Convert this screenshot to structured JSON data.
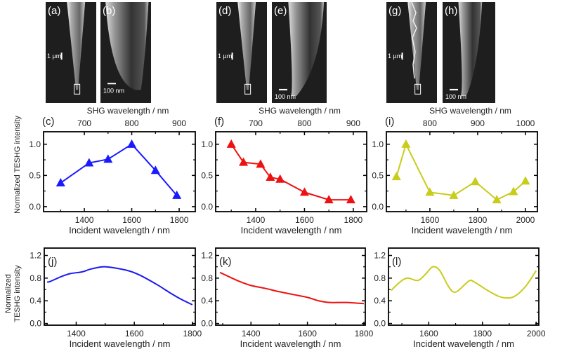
{
  "sem_panels": [
    {
      "label": "(a)",
      "scale_label": "1 µm",
      "kind": "overview-smooth"
    },
    {
      "label": "(b)",
      "scale_label": "100 nm",
      "kind": "apex-round"
    },
    {
      "label": "(d)",
      "scale_label": "1 µm",
      "kind": "overview-smooth"
    },
    {
      "label": "(e)",
      "scale_label": "100 nm",
      "kind": "apex-parabolic"
    },
    {
      "label": "(g)",
      "scale_label": "1 µm",
      "kind": "overview-rough"
    },
    {
      "label": "(h)",
      "scale_label": "100 nm",
      "kind": "apex-sharp"
    }
  ],
  "chart_data": [
    {
      "panel": "(c)",
      "type": "line",
      "markers": "triangle",
      "color": "#1a1aff",
      "xlabel": "Incident wavelength / nm",
      "x2label": "SHG wavelength / nm",
      "ylabel": "Normalized TESHG intensity",
      "xlim": [
        1228,
        1868
      ],
      "ylim": [
        -0.08,
        1.2
      ],
      "xticks": [
        1400,
        1600,
        1800
      ],
      "x2ticks": [
        700,
        800,
        900
      ],
      "yticks": [
        "0.0",
        "0.5",
        "1.0"
      ],
      "x": [
        1300,
        1420,
        1500,
        1600,
        1700,
        1790
      ],
      "y": [
        0.38,
        0.7,
        0.76,
        1.0,
        0.58,
        0.18
      ]
    },
    {
      "panel": "(f)",
      "type": "line",
      "markers": "triangle",
      "color": "#ee1111",
      "xlabel": "Incident wavelength / nm",
      "x2label": "SHG wavelength / nm",
      "xlim": [
        1236,
        1855
      ],
      "ylim": [
        -0.08,
        1.2
      ],
      "xticks": [
        1400,
        1600,
        1800
      ],
      "x2ticks": [
        700,
        800,
        900
      ],
      "yticks": [
        "0.0",
        "0.5",
        "1.0"
      ],
      "x": [
        1300,
        1350,
        1420,
        1460,
        1500,
        1600,
        1700,
        1790
      ],
      "y": [
        1.0,
        0.71,
        0.68,
        0.47,
        0.44,
        0.23,
        0.11,
        0.11
      ]
    },
    {
      "panel": "(i)",
      "type": "line",
      "markers": "triangle",
      "color": "#c8cc1a",
      "xlabel": "Incident wavelength / nm",
      "x2label": "SHG wavelength / nm",
      "xlim": [
        1418,
        2050
      ],
      "ylim": [
        -0.08,
        1.2
      ],
      "xticks": [
        1600,
        1800,
        2000
      ],
      "x2ticks": [
        800,
        900,
        1000
      ],
      "yticks": [
        "0.0",
        "0.5",
        "1.0"
      ],
      "x": [
        1460,
        1500,
        1600,
        1700,
        1790,
        1880,
        1950,
        2000
      ],
      "y": [
        0.48,
        1.0,
        0.23,
        0.18,
        0.4,
        0.11,
        0.24,
        0.41
      ]
    },
    {
      "panel": "(j)",
      "type": "line",
      "color": "#1a1aee",
      "xlabel": "Incident wavelength / nm",
      "ylabel": [
        "Normalized",
        "TESHG intensity"
      ],
      "xlim": [
        1290,
        1810
      ],
      "ylim": [
        -0.03,
        1.33
      ],
      "xticks": [
        1400,
        1600,
        1800
      ],
      "yticks": [
        "0.0",
        "0.4",
        "0.8",
        "1.2"
      ],
      "x": [
        1300,
        1310,
        1350,
        1380,
        1420,
        1450,
        1490,
        1520,
        1580,
        1620,
        1680,
        1720,
        1760,
        1800
      ],
      "y": [
        0.73,
        0.74,
        0.83,
        0.88,
        0.91,
        0.96,
        1.0,
        0.99,
        0.93,
        0.85,
        0.68,
        0.55,
        0.43,
        0.33
      ]
    },
    {
      "panel": "(k)",
      "type": "line",
      "color": "#ee1111",
      "xlabel": "Incident wavelength / nm",
      "xlim": [
        1275,
        1805
      ],
      "ylim": [
        -0.03,
        1.33
      ],
      "xticks": [
        1400,
        1600,
        1800
      ],
      "yticks": [
        "0.0",
        "0.4",
        "0.8",
        "1.2"
      ],
      "x": [
        1290,
        1320,
        1360,
        1400,
        1450,
        1500,
        1550,
        1600,
        1640,
        1680,
        1740,
        1800
      ],
      "y": [
        0.9,
        0.83,
        0.74,
        0.67,
        0.62,
        0.56,
        0.51,
        0.46,
        0.4,
        0.37,
        0.37,
        0.35
      ]
    },
    {
      "panel": "(l)",
      "type": "line",
      "color": "#c8cc1a",
      "xlabel": "Incident wavelength / nm",
      "xlim": [
        1450,
        2010
      ],
      "ylim": [
        -0.03,
        1.33
      ],
      "xticks": [
        1600,
        1800,
        2000
      ],
      "yticks": [
        "0.0",
        "0.4",
        "0.8",
        "1.2"
      ],
      "x": [
        1460,
        1490,
        1520,
        1560,
        1590,
        1615,
        1640,
        1670,
        1690,
        1710,
        1750,
        1770,
        1820,
        1860,
        1890,
        1920,
        1960,
        2000
      ],
      "y": [
        0.58,
        0.72,
        0.8,
        0.76,
        0.88,
        1.0,
        0.94,
        0.68,
        0.56,
        0.58,
        0.75,
        0.73,
        0.58,
        0.48,
        0.45,
        0.48,
        0.65,
        0.93
      ]
    }
  ]
}
